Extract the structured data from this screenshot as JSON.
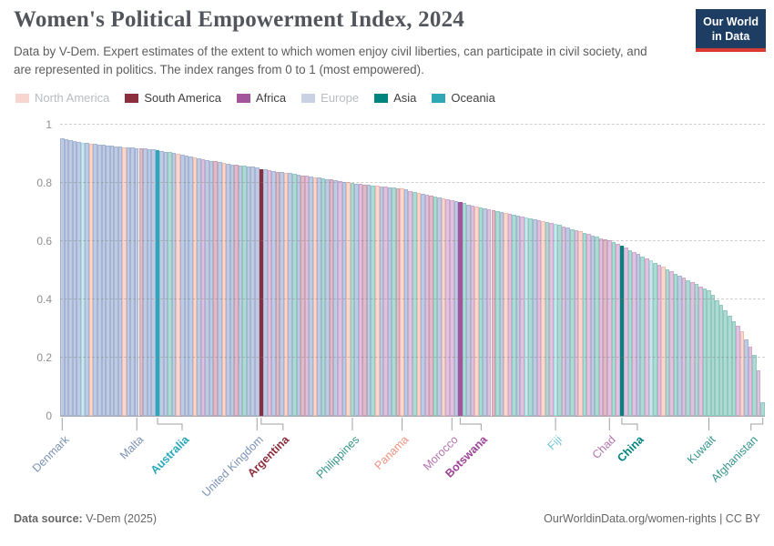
{
  "header": {
    "title": "Women's Political Empowerment Index, 2024",
    "subtitle": "Data by V-Dem. Expert estimates of the extent to which women enjoy civil liberties, can participate in civil society, and are represented in politics. The index ranges from 0 to 1 (most empowered).",
    "logo": {
      "line1": "Our World",
      "line2": "in Data"
    }
  },
  "legend": [
    {
      "label": "North America",
      "color": "#f8d6cf",
      "dim": true
    },
    {
      "label": "South America",
      "color": "#8b2e3e",
      "dim": false
    },
    {
      "label": "Africa",
      "color": "#a2559c",
      "dim": false
    },
    {
      "label": "Europe",
      "color": "#c8d2e4",
      "dim": true
    },
    {
      "label": "Asia",
      "color": "#00847e",
      "dim": false
    },
    {
      "label": "Oceania",
      "color": "#2fa8b5",
      "dim": false
    }
  ],
  "footer": {
    "source_label": "Data source:",
    "source_value": " V-Dem (2025)",
    "link": "OurWorldinData.org/women-rights | CC BY"
  },
  "chart_data": {
    "type": "bar",
    "title": "Women's Political Empowerment Index, 2024",
    "xlabel": "",
    "ylabel": "",
    "ylim": [
      0,
      1
    ],
    "grid": true,
    "legend_position": "top",
    "yticks": [
      {
        "v": 0,
        "label": "0"
      },
      {
        "v": 0.2,
        "label": "0.2"
      },
      {
        "v": 0.4,
        "label": "0.4"
      },
      {
        "v": 0.6,
        "label": "0.6"
      },
      {
        "v": 0.8,
        "label": "0.8"
      },
      {
        "v": 1,
        "label": "1"
      }
    ],
    "palette": {
      "EU": {
        "fill": "#bfcbe3",
        "stroke": "#a4b4d2",
        "full": "#4c6a9c"
      },
      "NA": {
        "fill": "#f9d7ce",
        "stroke": "#eebdb0",
        "full": "#e56e5a"
      },
      "SA": {
        "fill": "#debbc6",
        "stroke": "#cd9fae",
        "full": "#8b2e3e"
      },
      "AF": {
        "fill": "#dfc2de",
        "stroke": "#cda7cc",
        "full": "#a2559c"
      },
      "AS": {
        "fill": "#afdad3",
        "stroke": "#8fc9bf",
        "full": "#00847e"
      },
      "OC": {
        "fill": "#c7e8ec",
        "stroke": "#a5d7dd",
        "full": "#27a8bb"
      }
    },
    "bars": [
      [
        0.953,
        "EU"
      ],
      [
        0.949,
        "EU"
      ],
      [
        0.946,
        "EU"
      ],
      [
        0.943,
        "EU"
      ],
      [
        0.941,
        "EU"
      ],
      [
        0.939,
        "OC"
      ],
      [
        0.937,
        "EU"
      ],
      [
        0.935,
        "NA"
      ],
      [
        0.933,
        "EU"
      ],
      [
        0.931,
        "EU"
      ],
      [
        0.93,
        "EU"
      ],
      [
        0.928,
        "EU"
      ],
      [
        0.927,
        "EU"
      ],
      [
        0.925,
        "EU"
      ],
      [
        0.924,
        "EU"
      ],
      [
        0.923,
        "NA"
      ],
      [
        0.922,
        "EU"
      ],
      [
        0.921,
        "EU"
      ],
      [
        0.92,
        "EU"
      ],
      [
        0.919,
        "SA"
      ],
      [
        0.918,
        "EU"
      ],
      [
        0.917,
        "EU"
      ],
      [
        0.916,
        "EU"
      ],
      [
        0.913,
        "OC"
      ],
      [
        0.91,
        "EU"
      ],
      [
        0.907,
        "EU"
      ],
      [
        0.905,
        "AS"
      ],
      [
        0.902,
        "EU"
      ],
      [
        0.899,
        "NA"
      ],
      [
        0.896,
        "EU"
      ],
      [
        0.893,
        "EU"
      ],
      [
        0.89,
        "EU"
      ],
      [
        0.888,
        "NA"
      ],
      [
        0.885,
        "EU"
      ],
      [
        0.882,
        "AF"
      ],
      [
        0.879,
        "EU"
      ],
      [
        0.876,
        "EU"
      ],
      [
        0.874,
        "SA"
      ],
      [
        0.871,
        "EU"
      ],
      [
        0.868,
        "NA"
      ],
      [
        0.866,
        "EU"
      ],
      [
        0.864,
        "EU"
      ],
      [
        0.862,
        "SA"
      ],
      [
        0.86,
        "EU"
      ],
      [
        0.858,
        "AS"
      ],
      [
        0.856,
        "EU"
      ],
      [
        0.855,
        "EU"
      ],
      [
        0.853,
        "EU"
      ],
      [
        0.848,
        "SA"
      ],
      [
        0.846,
        "EU"
      ],
      [
        0.844,
        "AF"
      ],
      [
        0.842,
        "EU"
      ],
      [
        0.839,
        "SA"
      ],
      [
        0.837,
        "EU"
      ],
      [
        0.835,
        "NA"
      ],
      [
        0.833,
        "EU"
      ],
      [
        0.831,
        "AS"
      ],
      [
        0.828,
        "EU"
      ],
      [
        0.826,
        "SA"
      ],
      [
        0.824,
        "AF"
      ],
      [
        0.822,
        "EU"
      ],
      [
        0.82,
        "NA"
      ],
      [
        0.818,
        "EU"
      ],
      [
        0.815,
        "AS"
      ],
      [
        0.813,
        "EU"
      ],
      [
        0.811,
        "SA"
      ],
      [
        0.809,
        "EU"
      ],
      [
        0.807,
        "AF"
      ],
      [
        0.804,
        "EU"
      ],
      [
        0.802,
        "NA"
      ],
      [
        0.8,
        "AS"
      ],
      [
        0.798,
        "EU"
      ],
      [
        0.797,
        "AF"
      ],
      [
        0.795,
        "SA"
      ],
      [
        0.793,
        "EU"
      ],
      [
        0.792,
        "AS"
      ],
      [
        0.79,
        "NA"
      ],
      [
        0.788,
        "EU"
      ],
      [
        0.787,
        "AF"
      ],
      [
        0.785,
        "EU"
      ],
      [
        0.783,
        "AS"
      ],
      [
        0.782,
        "SA"
      ],
      [
        0.78,
        "NA"
      ],
      [
        0.777,
        "EU"
      ],
      [
        0.773,
        "AF"
      ],
      [
        0.77,
        "AS"
      ],
      [
        0.767,
        "NA"
      ],
      [
        0.763,
        "EU"
      ],
      [
        0.76,
        "AF"
      ],
      [
        0.757,
        "SA"
      ],
      [
        0.753,
        "AS"
      ],
      [
        0.75,
        "EU"
      ],
      [
        0.747,
        "NA"
      ],
      [
        0.743,
        "AF"
      ],
      [
        0.74,
        "AF"
      ],
      [
        0.737,
        "EU"
      ],
      [
        0.733,
        "AF"
      ],
      [
        0.73,
        "AS"
      ],
      [
        0.726,
        "EU"
      ],
      [
        0.723,
        "AF"
      ],
      [
        0.72,
        "NA"
      ],
      [
        0.717,
        "AS"
      ],
      [
        0.713,
        "EU"
      ],
      [
        0.71,
        "AF"
      ],
      [
        0.707,
        "SA"
      ],
      [
        0.704,
        "AS"
      ],
      [
        0.7,
        "EU"
      ],
      [
        0.697,
        "NA"
      ],
      [
        0.694,
        "AF"
      ],
      [
        0.691,
        "AS"
      ],
      [
        0.687,
        "EU"
      ],
      [
        0.684,
        "AF"
      ],
      [
        0.681,
        "OC"
      ],
      [
        0.678,
        "AS"
      ],
      [
        0.674,
        "EU"
      ],
      [
        0.671,
        "AF"
      ],
      [
        0.668,
        "NA"
      ],
      [
        0.665,
        "AS"
      ],
      [
        0.662,
        "AF"
      ],
      [
        0.66,
        "OC"
      ],
      [
        0.655,
        "AS"
      ],
      [
        0.651,
        "AF"
      ],
      [
        0.646,
        "EU"
      ],
      [
        0.642,
        "AS"
      ],
      [
        0.637,
        "AF"
      ],
      [
        0.633,
        "NA"
      ],
      [
        0.628,
        "AS"
      ],
      [
        0.624,
        "AF"
      ],
      [
        0.619,
        "EU"
      ],
      [
        0.615,
        "AS"
      ],
      [
        0.61,
        "AF"
      ],
      [
        0.606,
        "SA"
      ],
      [
        0.602,
        "AF"
      ],
      [
        0.597,
        "AS"
      ],
      [
        0.591,
        "AF"
      ],
      [
        0.585,
        "AS"
      ],
      [
        0.578,
        "AF"
      ],
      [
        0.57,
        "AS"
      ],
      [
        0.563,
        "AF"
      ],
      [
        0.556,
        "EU"
      ],
      [
        0.548,
        "AS"
      ],
      [
        0.541,
        "AF"
      ],
      [
        0.533,
        "OC"
      ],
      [
        0.526,
        "AS"
      ],
      [
        0.519,
        "AF"
      ],
      [
        0.511,
        "NA"
      ],
      [
        0.504,
        "AS"
      ],
      [
        0.496,
        "AF"
      ],
      [
        0.489,
        "AS"
      ],
      [
        0.482,
        "EU"
      ],
      [
        0.474,
        "AF"
      ],
      [
        0.467,
        "AS"
      ],
      [
        0.459,
        "AF"
      ],
      [
        0.452,
        "AS"
      ],
      [
        0.445,
        "AF"
      ],
      [
        0.437,
        "AS"
      ],
      [
        0.43,
        "AS"
      ],
      [
        0.415,
        "AS"
      ],
      [
        0.398,
        "AS"
      ],
      [
        0.38,
        "AS"
      ],
      [
        0.362,
        "AS"
      ],
      [
        0.344,
        "AS"
      ],
      [
        0.326,
        "AS"
      ],
      [
        0.308,
        "AF"
      ],
      [
        0.29,
        "NA"
      ],
      [
        0.262,
        "EU"
      ],
      [
        0.238,
        "AF"
      ],
      [
        0.21,
        "AS"
      ],
      [
        0.155,
        "AF"
      ],
      [
        0.048,
        "AS"
      ]
    ],
    "labels": [
      {
        "name": "Denmark",
        "i": 0,
        "color": "#7b92b4"
      },
      {
        "name": "Malta",
        "i": 18,
        "color": "#7b92b4"
      },
      {
        "name": "Australia",
        "i": 23,
        "color": "#27a8bb",
        "h": true,
        "dx": 27
      },
      {
        "name": "United Kingdom",
        "i": 47,
        "color": "#7b92b4"
      },
      {
        "name": "Argentina",
        "i": 48,
        "color": "#8b2e3e",
        "h": true,
        "dx": 24
      },
      {
        "name": "Philippines",
        "i": 70,
        "color": "#35948b"
      },
      {
        "name": "Panama",
        "i": 82,
        "color": "#ec9181"
      },
      {
        "name": "Morocco",
        "i": 94,
        "color": "#b173ac"
      },
      {
        "name": "Botswana",
        "i": 96,
        "color": "#9c4297",
        "h": true,
        "dx": 23
      },
      {
        "name": "Fiji",
        "i": 119,
        "color": "#73c6d4"
      },
      {
        "name": "Chad",
        "i": 132,
        "color": "#b173ac"
      },
      {
        "name": "China",
        "i": 135,
        "color": "#00847e",
        "h": true,
        "dx": 17
      },
      {
        "name": "Kuwait",
        "i": 156,
        "color": "#35948b"
      },
      {
        "name": "Afghanistan",
        "i": 169,
        "color": "#35948b",
        "dx": -13
      }
    ]
  }
}
